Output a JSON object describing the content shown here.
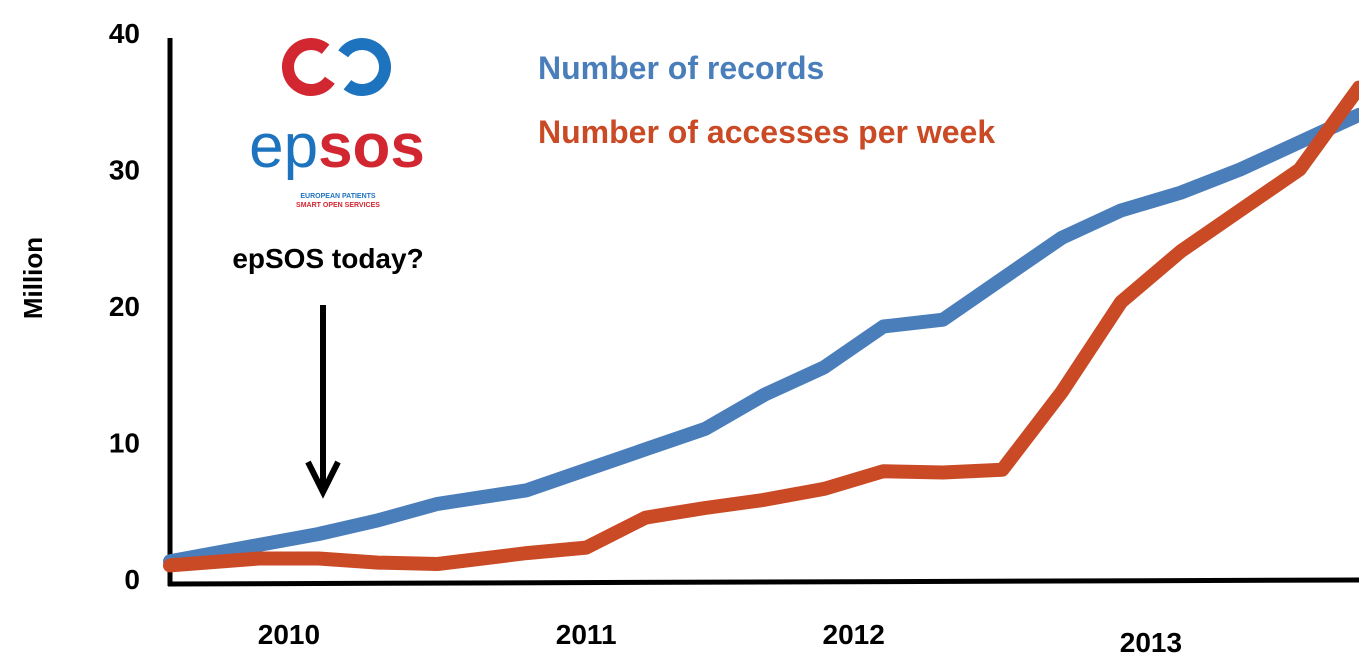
{
  "chart_data": {
    "type": "line",
    "title": "",
    "xlabel": "",
    "ylabel": "Million",
    "ylim": [
      0,
      40
    ],
    "yticks": [
      0,
      10,
      20,
      30,
      40
    ],
    "xlim": [
      2009.6,
      2013.6
    ],
    "xticks": [
      {
        "label": "2010",
        "value": 2010.0
      },
      {
        "label": "2011",
        "value": 2011.0
      },
      {
        "label": "2012",
        "value": 2011.9
      },
      {
        "label": "2013",
        "value": 2012.9
      }
    ],
    "grid": false,
    "legend_position": "top-center",
    "series": [
      {
        "name": "Number of records",
        "color": "#4a7ebb",
        "x": [
          2009.6,
          2009.9,
          2010.1,
          2010.3,
          2010.5,
          2010.8,
          2011.0,
          2011.2,
          2011.4,
          2011.6,
          2011.8,
          2012.0,
          2012.2,
          2012.4,
          2012.6,
          2012.8,
          2013.0,
          2013.2,
          2013.4,
          2013.6
        ],
        "y": [
          1.3,
          2.5,
          3.3,
          4.3,
          5.5,
          6.5,
          8.0,
          9.5,
          11.0,
          13.5,
          15.5,
          18.5,
          19.0,
          22.0,
          25.0,
          27.0,
          28.3,
          30.0,
          32.0,
          34.0
        ]
      },
      {
        "name": "Number of accesses per week",
        "color": "#c94a25",
        "x": [
          2009.6,
          2009.9,
          2010.1,
          2010.3,
          2010.5,
          2010.8,
          2011.0,
          2011.2,
          2011.4,
          2011.6,
          2011.8,
          2012.0,
          2012.2,
          2012.4,
          2012.6,
          2012.8,
          2013.0,
          2013.2,
          2013.4,
          2013.6
        ],
        "y": [
          1.0,
          1.5,
          1.5,
          1.2,
          1.1,
          1.9,
          2.3,
          4.5,
          5.2,
          5.8,
          6.6,
          7.9,
          7.8,
          8.0,
          13.7,
          20.3,
          24.0,
          27.0,
          30.0,
          36.0
        ]
      }
    ],
    "annotations": [
      {
        "text": "epSOS today?",
        "arrow": "down"
      }
    ]
  },
  "logo": {
    "word_ep": "ep",
    "word_sos": "sos",
    "tagline_1": "EUROPEAN PATIENTS",
    "tagline_2": "SMART OPEN SERVICES",
    "color_blue": "#1e73be",
    "color_red": "#d22630"
  }
}
